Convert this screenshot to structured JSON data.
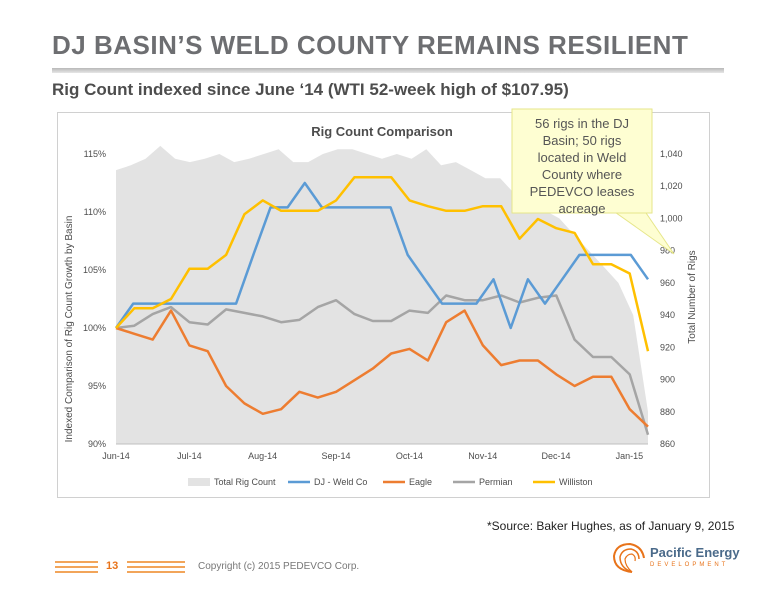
{
  "slide": {
    "title": "DJ BASIN’S WELD COUNTY REMAINS RESILIENT",
    "subtitle": "Rig Count indexed since June ‘14 (WTI 52-week high of $107.95)",
    "source": "*Source: Baker Hughes, as of January 9, 2015",
    "page_number": "13",
    "copyright": "Copyright (c) 2015 PEDEVCO Corp.",
    "logo_name": "Pacific Energy",
    "logo_sub": "DEVELOPMENT"
  },
  "chart_data": {
    "type": "line",
    "title": "Rig Count Comparison",
    "ylabel": "Indexed Comparison of Rig Count Growth by Basin",
    "y2label": "Total Number  of Rigs",
    "x_tick_labels": [
      "Jun-14",
      "Jul-14",
      "Aug-14",
      "Sep-14",
      "Oct-14",
      "Nov-14",
      "Dec-14",
      "Jan-15"
    ],
    "y_tick_labels": [
      "90%",
      "95%",
      "100%",
      "105%",
      "110%",
      "115%"
    ],
    "y2_tick_labels": [
      "860",
      "880",
      "900",
      "920",
      "940",
      "960",
      "980",
      "1,000",
      "1,020",
      "1,040"
    ],
    "ylim": [
      90,
      115
    ],
    "y2lim": [
      860,
      1040
    ],
    "annotation": "56 rigs in the DJ Basin; 50 rigs located in Weld County where PEDEVCO leases acreage",
    "legend_position": "bottom",
    "colors": {
      "area": "#e3e3e3",
      "weld": "#5b9bd5",
      "eagle": "#ed7d31",
      "permian": "#a5a5a5",
      "williston": "#ffc000",
      "annotation_bg": "#fefed2",
      "annotation_border": "#e6e68a"
    },
    "series": [
      {
        "name": "Total Rig Count",
        "kind": "area",
        "axis": "y2",
        "values": [
          1030,
          1033,
          1037,
          1045,
          1037,
          1035,
          1037,
          1040,
          1035,
          1037,
          1040,
          1043,
          1035,
          1035,
          1040,
          1043,
          1043,
          1040,
          1037,
          1040,
          1037,
          1043,
          1033,
          1035,
          1030,
          1025,
          1025,
          1015,
          1005,
          1005,
          1000,
          990,
          980,
          970,
          960,
          940,
          880
        ]
      },
      {
        "name": "DJ - Weld Co",
        "kind": "line",
        "axis": "y",
        "values": [
          100,
          102.1,
          102.1,
          102.1,
          102.1,
          102.1,
          102.1,
          102.1,
          106.3,
          110.4,
          110.4,
          112.5,
          110.4,
          110.4,
          110.4,
          110.4,
          110.4,
          106.3,
          104.2,
          102.1,
          102.1,
          102.1,
          104.2,
          100.0,
          104.2,
          102.1,
          104.2,
          106.3,
          106.3,
          106.3,
          106.3,
          104.2
        ]
      },
      {
        "name": "Eagle",
        "kind": "line",
        "axis": "y",
        "values": [
          100,
          99.5,
          99,
          101.5,
          98.5,
          98,
          95,
          93.5,
          92.6,
          93,
          94.5,
          94,
          94.5,
          95.5,
          96.5,
          97.8,
          98.2,
          97.2,
          100.5,
          101.5,
          98.5,
          96.8,
          97.2,
          97.2,
          96,
          95,
          95.8,
          95.8,
          93,
          91.5
        ]
      },
      {
        "name": "Permian",
        "kind": "line",
        "axis": "y",
        "values": [
          100,
          100.2,
          101.2,
          101.8,
          100.5,
          100.3,
          101.6,
          101.3,
          101,
          100.5,
          100.7,
          101.8,
          102.4,
          101.2,
          100.6,
          100.6,
          101.5,
          101.3,
          102.8,
          102.4,
          102.4,
          102.8,
          102.2,
          102.6,
          102.8,
          99,
          97.5,
          97.5,
          96,
          90.8
        ]
      },
      {
        "name": "Williston",
        "kind": "line",
        "axis": "y",
        "values": [
          100,
          101.7,
          101.7,
          102.5,
          105.1,
          105.1,
          106.3,
          109.8,
          111,
          110.1,
          110.1,
          110.1,
          111,
          113,
          113,
          113,
          111,
          110.5,
          110.1,
          110.1,
          110.5,
          110.5,
          107.7,
          109.4,
          108.6,
          108.2,
          105.5,
          105.5,
          104.7,
          98
        ]
      }
    ]
  }
}
